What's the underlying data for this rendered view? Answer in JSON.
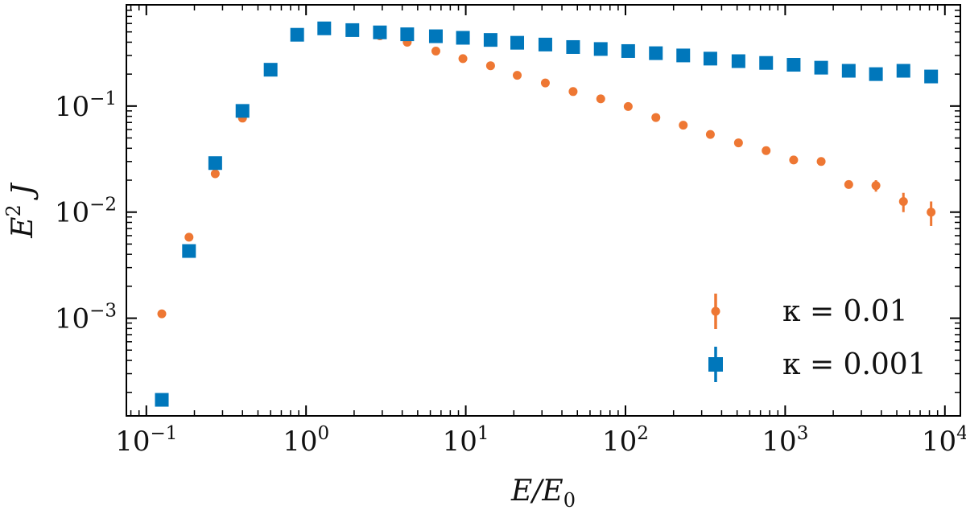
{
  "chart_data": {
    "type": "scatter",
    "title": "",
    "xscale": "log",
    "yscale": "log",
    "xlim": [
      0.075,
      12500
    ],
    "ylim": [
      0.00012,
      0.9
    ],
    "xlabel": {
      "base": "E/E",
      "sub": "0"
    },
    "ylabel": {
      "base": "E",
      "sup": "2",
      "tail": " J"
    },
    "xticks": [
      {
        "value": 0.1,
        "base": "10",
        "exp": "−1"
      },
      {
        "value": 1,
        "base": "10",
        "exp": "0"
      },
      {
        "value": 10,
        "base": "10",
        "exp": "1"
      },
      {
        "value": 100,
        "base": "10",
        "exp": "2"
      },
      {
        "value": 1000,
        "base": "10",
        "exp": "3"
      },
      {
        "value": 10000,
        "base": "10",
        "exp": "4"
      }
    ],
    "yticks": [
      {
        "value": 0.001,
        "base": "10",
        "exp": "−3"
      },
      {
        "value": 0.01,
        "base": "10",
        "exp": "−2"
      },
      {
        "value": 0.1,
        "base": "10",
        "exp": "−1"
      }
    ],
    "legend_position": "bottom-right",
    "series": [
      {
        "name": "κ = 0.01",
        "label": "κ = 0.01",
        "marker": "circle",
        "color": "#ee7733",
        "x": [
          0.125,
          0.185,
          0.27,
          0.4,
          0.6,
          0.88,
          1.3,
          1.95,
          2.9,
          4.3,
          6.5,
          9.6,
          14.3,
          21,
          31.5,
          47,
          70,
          104,
          155,
          230,
          340,
          510,
          760,
          1130,
          1680,
          2500,
          3700,
          5500,
          8200
        ],
        "y": [
          0.0011,
          0.0058,
          0.023,
          0.077,
          0.22,
          0.46,
          0.53,
          0.5,
          0.46,
          0.4,
          0.33,
          0.28,
          0.24,
          0.195,
          0.165,
          0.137,
          0.117,
          0.099,
          0.078,
          0.066,
          0.054,
          0.045,
          0.038,
          0.031,
          0.03,
          0.0182,
          0.0178,
          0.0126,
          0.01
        ],
        "err": [
          0,
          0,
          0,
          0,
          0,
          0,
          0,
          0,
          0,
          0,
          0,
          0,
          0,
          0,
          0,
          0,
          0,
          0,
          0,
          0,
          0,
          0,
          0,
          0,
          0,
          0.0012,
          0.0022,
          0.0026,
          0.0026
        ]
      },
      {
        "name": "κ = 0.001",
        "label": "κ = 0.001",
        "marker": "square",
        "color": "#0077bb",
        "x": [
          0.125,
          0.185,
          0.27,
          0.4,
          0.6,
          0.88,
          1.3,
          1.95,
          2.9,
          4.3,
          6.5,
          9.6,
          14.3,
          21,
          31.5,
          47,
          70,
          104,
          155,
          230,
          340,
          510,
          760,
          1130,
          1680,
          2500,
          3700,
          5500,
          8200
        ],
        "y": [
          0.00017,
          0.0043,
          0.029,
          0.09,
          0.22,
          0.47,
          0.54,
          0.52,
          0.495,
          0.475,
          0.455,
          0.44,
          0.42,
          0.395,
          0.38,
          0.36,
          0.345,
          0.33,
          0.315,
          0.3,
          0.28,
          0.265,
          0.255,
          0.245,
          0.23,
          0.215,
          0.2,
          0.215,
          0.19
        ],
        "err": [
          0,
          0,
          0,
          0,
          0,
          0,
          0,
          0,
          0,
          0,
          0,
          0,
          0,
          0,
          0,
          0,
          0,
          0,
          0,
          0,
          0,
          0,
          0,
          0,
          0,
          0,
          0,
          0,
          0
        ]
      }
    ]
  }
}
